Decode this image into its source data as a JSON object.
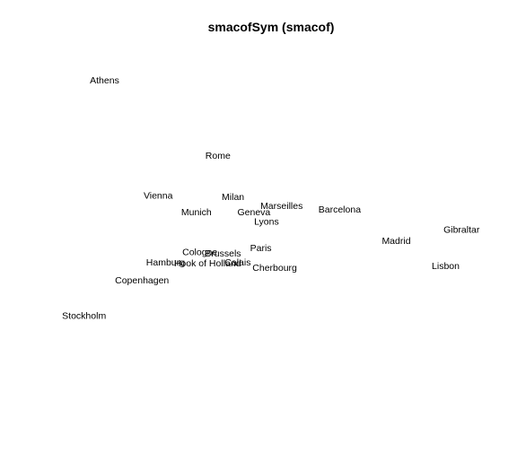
{
  "chart_data": {
    "type": "scatter",
    "title": "smacofSym (smacof)",
    "xlabel": "",
    "ylabel": "",
    "grid": false,
    "axes_visible": false,
    "xlim": [
      -1.0,
      1.0
    ],
    "ylim": [
      -1.0,
      1.0
    ],
    "text_color": "#000000",
    "background": "#ffffff",
    "points": [
      {
        "label": "Athens",
        "x": -0.767,
        "y": 0.84
      },
      {
        "label": "Rome",
        "x": -0.246,
        "y": 0.4
      },
      {
        "label": "Vienna",
        "x": -0.521,
        "y": 0.164
      },
      {
        "label": "Milan",
        "x": -0.177,
        "y": 0.156
      },
      {
        "label": "Marseilles",
        "x": 0.046,
        "y": 0.104
      },
      {
        "label": "Barcelona",
        "x": 0.313,
        "y": 0.084
      },
      {
        "label": "Munich",
        "x": -0.345,
        "y": 0.068
      },
      {
        "label": "Geneva",
        "x": -0.081,
        "y": 0.068
      },
      {
        "label": "Lyons",
        "x": -0.023,
        "y": 0.012
      },
      {
        "label": "Gibraltar",
        "x": 0.873,
        "y": -0.036
      },
      {
        "label": "Madrid",
        "x": 0.573,
        "y": -0.1
      },
      {
        "label": "Paris",
        "x": -0.049,
        "y": -0.144
      },
      {
        "label": "Cologne",
        "x": -0.329,
        "y": -0.168
      },
      {
        "label": "Brussels",
        "x": -0.223,
        "y": -0.176
      },
      {
        "label": "Calais",
        "x": -0.155,
        "y": -0.228
      },
      {
        "label": "Hook of Holland",
        "x": -0.294,
        "y": -0.232
      },
      {
        "label": "Hamburg",
        "x": -0.487,
        "y": -0.228
      },
      {
        "label": "Lisbon",
        "x": 0.8,
        "y": -0.248
      },
      {
        "label": "Cherbourg",
        "x": 0.015,
        "y": -0.26
      },
      {
        "label": "Copenhagen",
        "x": -0.595,
        "y": -0.332
      },
      {
        "label": "Stockholm",
        "x": -0.861,
        "y": -0.54
      }
    ]
  }
}
